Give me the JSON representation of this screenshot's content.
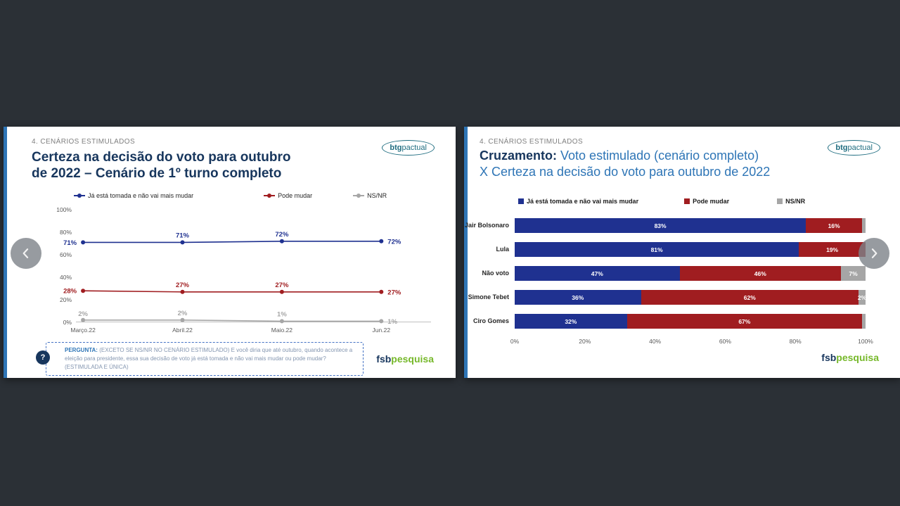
{
  "colors": {
    "background": "#2b3036",
    "slide_accent": "#2e75b6",
    "title_navy": "#17365d",
    "title_blue": "#2e75b6",
    "btg_teal": "#1f6d80",
    "fsb_green": "#76b82a"
  },
  "brand": {
    "btg_bold": "btg",
    "btg_light": "pactual",
    "fsb_bold": "fsb",
    "fsb_light": "pesquisa"
  },
  "slide_left": {
    "section": "4. CENÁRIOS ESTIMULADOS",
    "title_line1": "Certeza na decisão do voto para outubro",
    "title_line2": "de 2022 – Cenário de 1º turno completo",
    "question_icon": "?",
    "question_label": "PERGUNTA:",
    "question_text": " (EXCETO SE NS/NR NO CENÁRIO ESTIMULADO) E você diria que até outubro, quando acontece a eleição para presidente, essa sua decisão de voto já está tomada e não vai mais mudar ou pode mudar? (ESTIMULADA E ÚNICA)"
  },
  "slide_right": {
    "section": "4. CENÁRIOS ESTIMULADOS",
    "title_bold": "Cruzamento:",
    "title_rest_line1": " Voto estimulado (cenário completo)",
    "title_line2": "X Certeza na decisão do voto para outubro de 2022"
  },
  "chart_data": [
    {
      "type": "line",
      "title": "Certeza na decisão do voto para outubro de 2022 – Cenário de 1º turno completo",
      "categories": [
        "Março.22",
        "Abril.22",
        "Maio.22",
        "Jun.22"
      ],
      "series": [
        {
          "name": "Já está tomada e não vai mais mudar",
          "color": "#1f3190",
          "values": [
            71,
            71,
            72,
            72
          ],
          "labels": [
            "71%",
            "71%",
            "72%",
            "72%"
          ]
        },
        {
          "name": "Pode mudar",
          "color": "#a01d20",
          "values": [
            28,
            27,
            27,
            27
          ],
          "labels": [
            "28%",
            "27%",
            "27%",
            "27%"
          ]
        },
        {
          "name": "NS/NR",
          "color": "#a6a6a6",
          "values": [
            2,
            2,
            1,
            1
          ],
          "labels": [
            "2%",
            "2%",
            "1%",
            "1%"
          ]
        }
      ],
      "ylim": [
        0,
        100
      ],
      "yticks": [
        0,
        20,
        40,
        60,
        80,
        100
      ],
      "ytick_labels": [
        "0%",
        "20%",
        "40%",
        "60%",
        "80%",
        "100%"
      ],
      "legend_position": "top",
      "grid": false
    },
    {
      "type": "bar",
      "orientation": "horizontal",
      "stacked": true,
      "title": "Cruzamento: Voto estimulado (cenário completo) X Certeza na decisão do voto para outubro de 2022",
      "categories": [
        "Jair Bolsonaro",
        "Lula",
        "Não voto",
        "Simone Tebet",
        "Ciro Gomes"
      ],
      "series": [
        {
          "name": "Já está tomada e não vai mais mudar",
          "color": "#1f3190",
          "values": [
            83,
            81,
            47,
            36,
            32
          ],
          "labels": [
            "83%",
            "81%",
            "47%",
            "36%",
            "32%"
          ]
        },
        {
          "name": "Pode mudar",
          "color": "#a01d20",
          "values": [
            16,
            19,
            46,
            62,
            67
          ],
          "labels": [
            "16%",
            "19%",
            "46%",
            "62%",
            "67%"
          ]
        },
        {
          "name": "NS/NR",
          "color": "#a6a6a6",
          "values": [
            1,
            0,
            7,
            2,
            1
          ],
          "labels": [
            "",
            "",
            "7%",
            "2%",
            ""
          ]
        }
      ],
      "xlim": [
        0,
        100
      ],
      "xticks": [
        0,
        20,
        40,
        60,
        80,
        100
      ],
      "xtick_labels": [
        "0%",
        "20%",
        "40%",
        "60%",
        "80%",
        "100%"
      ],
      "legend_position": "top",
      "grid": false
    }
  ]
}
